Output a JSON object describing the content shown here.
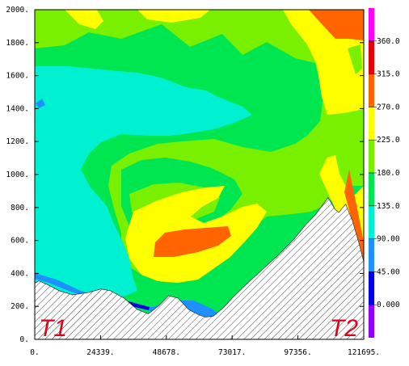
{
  "chart_data": {
    "type": "contour",
    "x_ticks": [
      "0.",
      "24339.",
      "48678.",
      "73017.",
      "97356.",
      "121695."
    ],
    "y_ticks": [
      "0.",
      "200.",
      "400.",
      "600.",
      "800.",
      "1000.",
      "1200.",
      "1400.",
      "1600.",
      "1800.",
      "2000."
    ],
    "xlim": [
      0,
      121695
    ],
    "ylim": [
      0,
      2000
    ],
    "endpoint_labels": [
      "T1",
      "T2"
    ],
    "colorbar": {
      "labels": [
        "0.000",
        "45.00",
        "90.00",
        "135.0",
        "180.0",
        "225.0",
        "270.0",
        "315.0",
        "360.0"
      ],
      "levels": [
        -45,
        0,
        45,
        90,
        135,
        180,
        225,
        270,
        315,
        360,
        405
      ],
      "colors": [
        "#9400ff",
        "#0000e6",
        "#1e90ff",
        "#00f0d2",
        "#00e650",
        "#78f000",
        "#ffff00",
        "#ff6400",
        "#e60000",
        "#ff00ff"
      ]
    },
    "terrain": {
      "x": [
        0,
        1500,
        5000,
        9000,
        14000,
        20000,
        24339,
        28000,
        33000,
        38000,
        42000,
        46000,
        49500,
        53000,
        57000,
        60500,
        63000,
        66000,
        70000,
        73017,
        78000,
        84000,
        90000,
        96000,
        100000,
        104000,
        108500,
        111000,
        112500,
        115000,
        117500,
        120000,
        121695
      ],
      "y": [
        340,
        355,
        330,
        295,
        270,
        285,
        305,
        295,
        250,
        180,
        155,
        205,
        265,
        250,
        180,
        150,
        135,
        140,
        195,
        250,
        330,
        420,
        510,
        610,
        690,
        760,
        860,
        790,
        770,
        820,
        720,
        580,
        470
      ]
    }
  }
}
